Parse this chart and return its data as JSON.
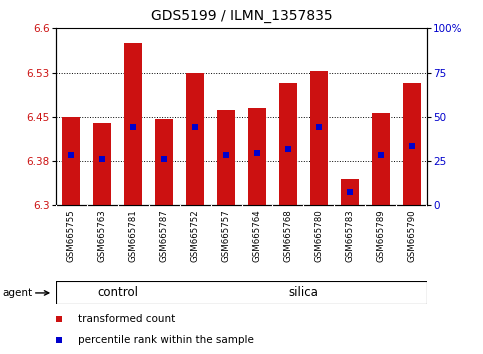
{
  "title": "GDS5199 / ILMN_1357835",
  "samples": [
    "GSM665755",
    "GSM665763",
    "GSM665781",
    "GSM665787",
    "GSM665752",
    "GSM665757",
    "GSM665764",
    "GSM665768",
    "GSM665780",
    "GSM665783",
    "GSM665789",
    "GSM665790"
  ],
  "bar_base": 6.3,
  "bar_tops": [
    6.45,
    6.44,
    6.575,
    6.447,
    6.525,
    6.462,
    6.465,
    6.507,
    6.527,
    6.345,
    6.457,
    6.507
  ],
  "blue_marker_values": [
    6.385,
    6.378,
    6.432,
    6.378,
    6.432,
    6.385,
    6.388,
    6.395,
    6.432,
    6.323,
    6.385,
    6.4
  ],
  "ylim_left": [
    6.3,
    6.6
  ],
  "ylim_right": [
    0,
    100
  ],
  "yticks_left": [
    6.3,
    6.375,
    6.45,
    6.525,
    6.6
  ],
  "yticks_right": [
    0,
    25,
    50,
    75,
    100
  ],
  "bar_color": "#cc1111",
  "blue_color": "#0000cc",
  "group_band_color": "#90EE90",
  "tick_area_color": "#c8c8c8",
  "control_count": 4,
  "silica_count": 8,
  "title_fontsize": 10,
  "legend_items": [
    {
      "color": "#cc1111",
      "label": "transformed count"
    },
    {
      "color": "#0000cc",
      "label": "percentile rank within the sample"
    }
  ]
}
